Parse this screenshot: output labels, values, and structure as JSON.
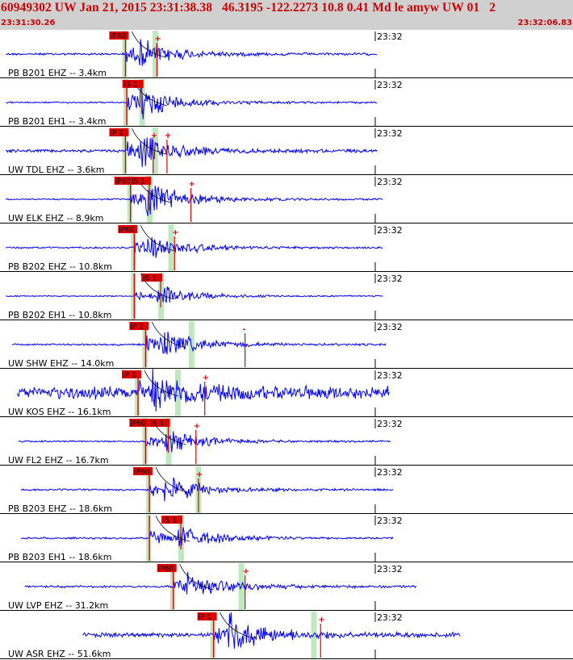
{
  "header": {
    "title": "60949302 UW Jan 21, 2015 23:31:38.38   46.3195 -122.2273 10.8 0.41 Md le amyw UW 01   2",
    "start_time": "23:31:30.26",
    "end_time": "23:32:06.83"
  },
  "colors": {
    "header_bg": "#d0d0d0",
    "header_text": "#cc0000",
    "trace": "#0000ff",
    "pick": "#dd0000",
    "window": "#bfe8bf",
    "theory_curve": "#000000"
  },
  "chart_data": {
    "type": "line",
    "title": "60949302 UW Jan 21, 2015 23:31:38.38   46.3195 -122.2273 10.8 0.41 Md le amyw UW 01   2",
    "xlabel": "",
    "ylabel": "",
    "time_start": "23:31:30.26",
    "time_end": "23:32:06.83",
    "xlim": [
      0,
      36.57
    ],
    "minute_tick_label": "23:32",
    "minute_tick_time": 29.74,
    "grid": false,
    "channels": [
      {
        "label": "PB B201 EHZ -- 3.4km",
        "p_pick": "iP60",
        "p_time": 9.9,
        "s_pick": "",
        "s_time": null,
        "trace_start": 0.4,
        "trace_end": 29.9,
        "amplitude": 0.7,
        "noise": 0.06,
        "extra_picks": [
          {
            "t": 12.4,
            "sign": "+"
          }
        ]
      },
      {
        "label": "PB B201 EH1 -- 3.4km",
        "p_pick": "",
        "p_time": 10.0,
        "s_pick": "iS 1",
        "s_time": 11.2,
        "trace_start": 0.4,
        "trace_end": 29.9,
        "amplitude": 0.8,
        "noise": 0.04,
        "extra_picks": []
      },
      {
        "label": "UW TDL EHZ -- 3.6km",
        "p_pick": "iP 1",
        "p_time": 9.9,
        "s_pick": "",
        "s_time": null,
        "trace_start": 0.4,
        "trace_end": 29.9,
        "amplitude": 0.75,
        "noise": 0.08,
        "extra_picks": [
          {
            "t": 12.1,
            "sign": "+"
          },
          {
            "t": 13.2,
            "sign": "+"
          }
        ]
      },
      {
        "label": "UW ELK EHZ -- 8.9km",
        "p_pick": "iP60",
        "p_time": 10.3,
        "s_pick": "iS 1",
        "s_time": 11.8,
        "trace_start": 0.4,
        "trace_end": 30.4,
        "amplitude": 0.9,
        "noise": 0.04,
        "extra_picks": [
          {
            "t": 15.1,
            "sign": "+"
          }
        ]
      },
      {
        "label": "PB B202 EHZ -- 10.8km",
        "p_pick": "iP60",
        "p_time": 10.6,
        "s_pick": "",
        "s_time": null,
        "trace_start": 0.4,
        "trace_end": 30.4,
        "amplitude": 0.6,
        "noise": 0.05,
        "extra_picks": [
          {
            "t": 13.8,
            "sign": "+"
          }
        ]
      },
      {
        "label": "PB B202 EH1 -- 10.8km",
        "p_pick": "",
        "p_time": 10.6,
        "s_pick": "iS 1",
        "s_time": 12.7,
        "trace_start": 0.4,
        "trace_end": 30.4,
        "amplitude": 0.5,
        "noise": 0.03,
        "extra_picks": []
      },
      {
        "label": "UW SHW EHZ -- 14.0km",
        "p_pick": "iP 1",
        "p_time": 11.5,
        "s_pick": "",
        "s_time": null,
        "trace_start": 0.9,
        "trace_end": 30.6,
        "amplitude": 0.7,
        "noise": 0.05,
        "extra_picks": [
          {
            "t": 19.4,
            "sign": "-"
          }
        ]
      },
      {
        "label": "UW KOS EHZ -- 16.1km",
        "p_pick": "iP 1",
        "p_time": 10.9,
        "s_pick": "",
        "s_time": null,
        "trace_start": 1.3,
        "trace_end": 30.9,
        "amplitude": 0.8,
        "noise": 0.35,
        "extra_picks": [
          {
            "t": 16.2,
            "sign": "+"
          }
        ]
      },
      {
        "label": "UW FL2 EHZ -- 16.7km",
        "p_pick": "iP60",
        "p_time": 11.5,
        "s_pick": "iS 1",
        "s_time": 13.3,
        "trace_start": 1.4,
        "trace_end": 31.0,
        "amplitude": 0.6,
        "noise": 0.04,
        "extra_picks": [
          {
            "t": 15.5,
            "sign": "+"
          }
        ]
      },
      {
        "label": "PB B203 EHZ -- 18.6km",
        "p_pick": "iP60",
        "p_time": 11.8,
        "s_pick": "",
        "s_time": null,
        "trace_start": 1.6,
        "trace_end": 31.2,
        "amplitude": 0.65,
        "noise": 0.05,
        "extra_picks": [
          {
            "t": 15.7,
            "sign": "+"
          }
        ]
      },
      {
        "label": "PB B203 EH1 -- 18.6km",
        "p_pick": "",
        "p_time": 11.8,
        "s_pick": "iS 1",
        "s_time": 14.3,
        "trace_start": 1.6,
        "trace_end": 31.2,
        "amplitude": 0.6,
        "noise": 0.05,
        "extra_picks": []
      },
      {
        "label": "UW LVP EHZ -- 31.2km",
        "p_pick": "iP60",
        "p_time": 13.7,
        "s_pick": "",
        "s_time": null,
        "trace_start": 1.9,
        "trace_end": 33.0,
        "amplitude": 0.7,
        "noise": 0.06,
        "extra_picks": [
          {
            "t": 19.4,
            "sign": "+"
          }
        ]
      },
      {
        "label": "UW ASR EHZ -- 51.6km",
        "p_pick": "iP 1",
        "p_time": 16.9,
        "s_pick": "",
        "s_time": null,
        "trace_start": 6.5,
        "trace_end": 36.5,
        "amplitude": 0.9,
        "noise": 0.12,
        "extra_picks": [
          {
            "t": 25.4,
            "sign": "+"
          }
        ]
      }
    ]
  }
}
